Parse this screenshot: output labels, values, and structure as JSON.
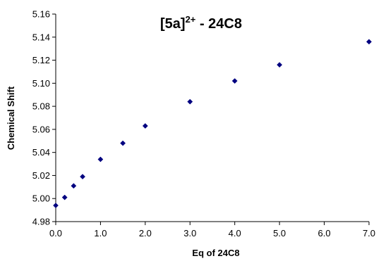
{
  "chart_data": {
    "type": "scatter",
    "title": {
      "main": "[5a]",
      "superscript": "2+",
      "suffix": " - 24C8"
    },
    "xlabel": "Eq of 24C8",
    "ylabel": "Chemical Shift",
    "xlim": [
      0,
      7
    ],
    "ylim": [
      4.98,
      5.16
    ],
    "x_ticks": [
      "0.0",
      "1.0",
      "2.0",
      "3.0",
      "4.0",
      "5.0",
      "6.0",
      "7.0"
    ],
    "x_tick_values": [
      0,
      1,
      2,
      3,
      4,
      5,
      6,
      7
    ],
    "y_ticks": [
      "4.98",
      "5.00",
      "5.02",
      "5.04",
      "5.06",
      "5.08",
      "5.10",
      "5.12",
      "5.14",
      "5.16"
    ],
    "y_tick_values": [
      4.98,
      5.0,
      5.02,
      5.04,
      5.06,
      5.08,
      5.1,
      5.12,
      5.14,
      5.16
    ],
    "grid": false,
    "marker": "diamond",
    "marker_color": "#000080",
    "series": [
      {
        "x": [
          0.0,
          0.2,
          0.4,
          0.6,
          1.0,
          1.5,
          2.0,
          3.0,
          4.0,
          5.0,
          7.0
        ],
        "y": [
          4.994,
          5.001,
          5.011,
          5.019,
          5.034,
          5.048,
          5.063,
          5.084,
          5.102,
          5.116,
          5.136
        ]
      }
    ]
  }
}
